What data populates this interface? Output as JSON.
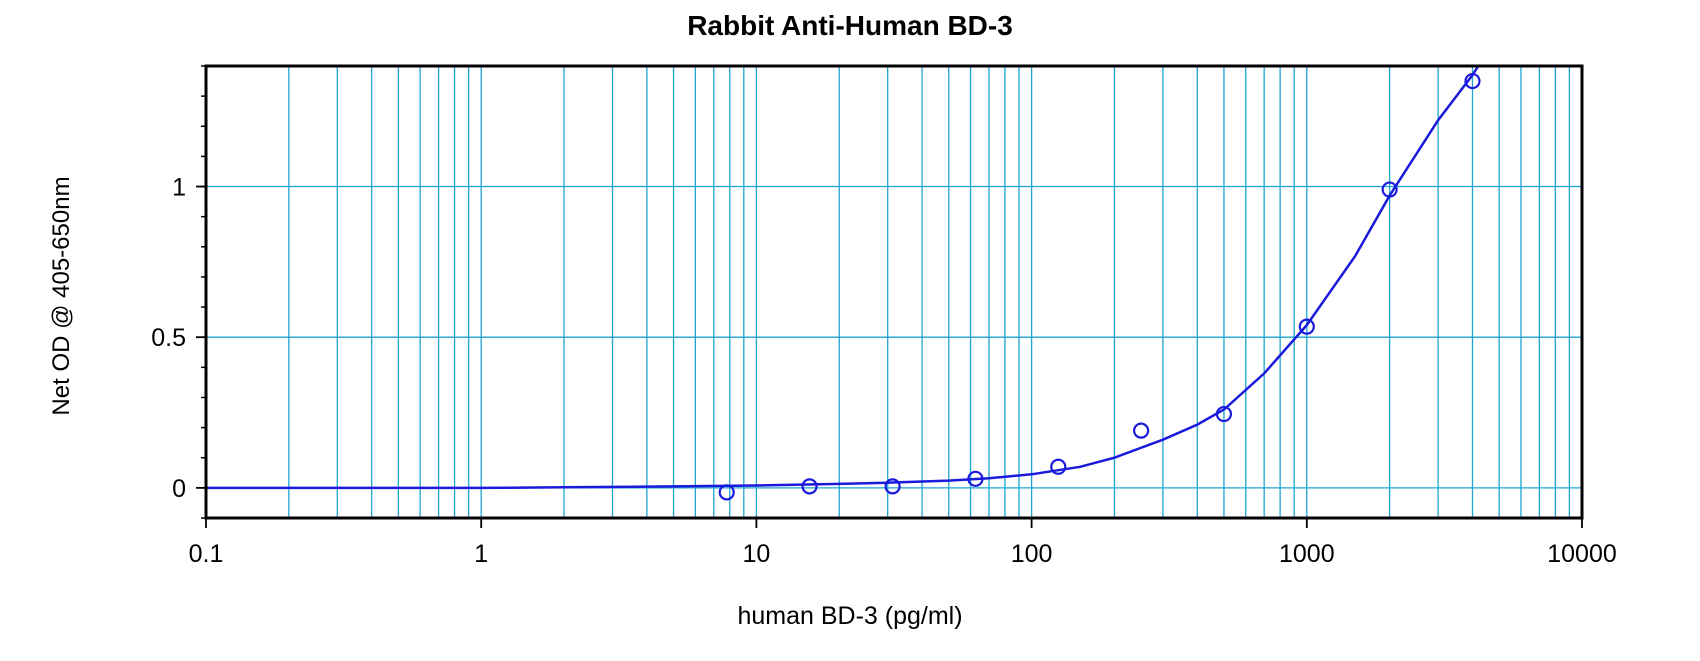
{
  "chart_data": {
    "type": "scatter",
    "title": "Rabbit Anti-Human BD-3",
    "xlabel": "human BD-3 (pg/ml)",
    "ylabel": "Net OD @ 405-650nm",
    "xscale": "log",
    "xlim": [
      0.1,
      10000
    ],
    "ylim": [
      -0.1,
      1.4
    ],
    "x_ticks": [
      0.1,
      1,
      10,
      100,
      1000,
      10000
    ],
    "x_tick_labels": [
      "0.1",
      "1",
      "10",
      "100",
      "1000",
      "10000"
    ],
    "y_ticks": [
      0,
      0.5,
      1
    ],
    "y_tick_labels": [
      "0",
      "0.5",
      "1"
    ],
    "grid": true,
    "series": [
      {
        "type": "scatter",
        "marker": "open-circle",
        "x": [
          7.8,
          15.6,
          31.25,
          62.5,
          125,
          250,
          500,
          1000,
          2000,
          4000
        ],
        "y": [
          -0.015,
          0.005,
          0.005,
          0.03,
          0.07,
          0.19,
          0.245,
          0.535,
          0.99,
          1.35
        ]
      },
      {
        "type": "line",
        "x": [
          0.1,
          1,
          2,
          5,
          10,
          20,
          30,
          50,
          70,
          100,
          150,
          200,
          300,
          400,
          500,
          700,
          1000,
          1500,
          2000,
          3000,
          4000,
          4200
        ],
        "y": [
          0,
          0,
          0.002,
          0.005,
          0.008,
          0.013,
          0.017,
          0.024,
          0.032,
          0.045,
          0.07,
          0.1,
          0.16,
          0.21,
          0.26,
          0.38,
          0.54,
          0.77,
          0.97,
          1.22,
          1.37,
          1.4
        ]
      }
    ],
    "colors": {
      "data": "#1a1adc",
      "grid": "#1ea5d2",
      "axis": "#000000"
    }
  }
}
